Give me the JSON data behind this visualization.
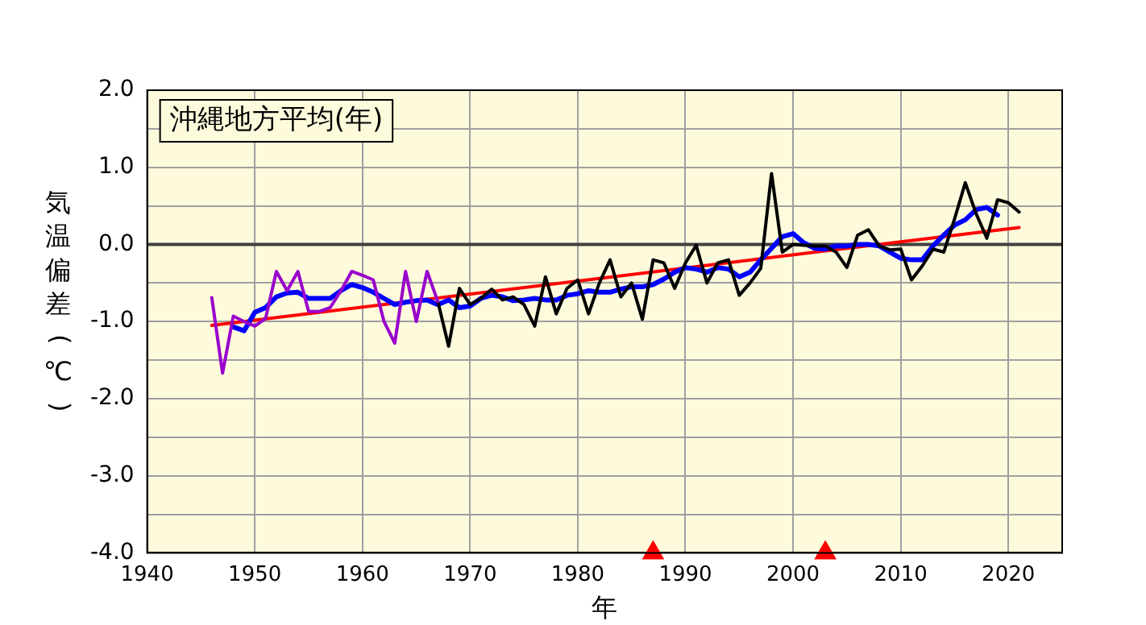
{
  "chart_data": {
    "type": "line",
    "title": "沖縄地方平均(年)",
    "xlabel": "年",
    "ylabel": "気温偏差(℃)",
    "xlim": [
      1940,
      2025
    ],
    "xticks": [
      1940,
      1950,
      1960,
      1970,
      1980,
      1990,
      2000,
      2010,
      2020
    ],
    "ylim": [
      -4,
      2
    ],
    "yticks": [
      {
        "value": -4,
        "label": "-4.0"
      },
      {
        "value": -3.5,
        "label": null
      },
      {
        "value": -3,
        "label": "-3.0"
      },
      {
        "value": -2.5,
        "label": null
      },
      {
        "value": -2,
        "label": "-2.0"
      },
      {
        "value": -1.5,
        "label": null
      },
      {
        "value": -1,
        "label": "-1.0"
      },
      {
        "value": -0.5,
        "label": null
      },
      {
        "value": 0,
        "label": "0.0"
      },
      {
        "value": 0.5,
        "label": null
      },
      {
        "value": 1,
        "label": "1.0"
      },
      {
        "value": 1.5,
        "label": null
      },
      {
        "value": 2,
        "label": "2.0"
      }
    ],
    "grid": true,
    "legend": false,
    "marker": "none",
    "line_style": "solid",
    "ref_lines": [
      {
        "axis": "y",
        "value": 0,
        "color": "#404040"
      }
    ],
    "series": [
      {
        "type": "line",
        "color": "#9900cc",
        "x": [
          1946,
          1947,
          1948,
          1949,
          1950,
          1951,
          1952,
          1953,
          1954,
          1955,
          1956,
          1957,
          1958,
          1959,
          1960,
          1961,
          1962,
          1963,
          1964,
          1965,
          1966,
          1967
        ],
        "values": [
          -0.69,
          -1.67,
          -0.93,
          -1.0,
          -1.06,
          -0.96,
          -0.35,
          -0.6,
          -0.35,
          -0.87,
          -0.87,
          -0.82,
          -0.6,
          -0.35,
          -0.4,
          -0.46,
          -1.0,
          -1.28,
          -0.35,
          -1.0,
          -0.35,
          -0.74
        ]
      },
      {
        "type": "line",
        "color": "#000000",
        "x": [
          1967,
          1968,
          1969,
          1970,
          1971,
          1972,
          1973,
          1974,
          1975,
          1976,
          1977,
          1978,
          1979,
          1980,
          1981,
          1982,
          1983,
          1984,
          1985,
          1986,
          1987,
          1988,
          1989,
          1990,
          1991,
          1992,
          1993,
          1994,
          1995,
          1996,
          1997,
          1998,
          1999,
          2000,
          2001,
          2002,
          2003,
          2004,
          2005,
          2006,
          2007,
          2008,
          2009,
          2010,
          2011,
          2012,
          2013,
          2014,
          2015,
          2016,
          2017,
          2018,
          2019,
          2020,
          2021
        ],
        "values": [
          -0.74,
          -1.32,
          -0.57,
          -0.78,
          -0.7,
          -0.58,
          -0.72,
          -0.68,
          -0.78,
          -1.06,
          -0.42,
          -0.9,
          -0.57,
          -0.46,
          -0.9,
          -0.5,
          -0.2,
          -0.68,
          -0.5,
          -0.97,
          -0.2,
          -0.24,
          -0.57,
          -0.24,
          -0.01,
          -0.5,
          -0.24,
          -0.2,
          -0.66,
          -0.5,
          -0.31,
          0.92,
          -0.1,
          0.0,
          -0.01,
          -0.02,
          -0.02,
          -0.1,
          -0.3,
          0.12,
          0.19,
          -0.02,
          -0.07,
          -0.06,
          -0.46,
          -0.28,
          -0.06,
          -0.1,
          0.33,
          0.8,
          0.4,
          0.08,
          0.58,
          0.54,
          0.42
        ]
      },
      {
        "type": "line",
        "color": "#0000ff",
        "x": [
          1948,
          1949,
          1950,
          1951,
          1952,
          1953,
          1954,
          1955,
          1956,
          1957,
          1958,
          1959,
          1960,
          1961,
          1962,
          1963,
          1964,
          1965,
          1966,
          1967,
          1968,
          1969,
          1970,
          1971,
          1972,
          1973,
          1974,
          1975,
          1976,
          1977,
          1978,
          1979,
          1980,
          1981,
          1982,
          1983,
          1984,
          1985,
          1986,
          1987,
          1988,
          1989,
          1990,
          1991,
          1992,
          1993,
          1994,
          1995,
          1996,
          1997,
          1998,
          1999,
          2000,
          2001,
          2002,
          2003,
          2004,
          2005,
          2006,
          2007,
          2008,
          2009,
          2010,
          2011,
          2012,
          2013,
          2014,
          2015,
          2016,
          2017,
          2018,
          2019
        ],
        "values": [
          -1.07,
          -1.12,
          -0.88,
          -0.82,
          -0.68,
          -0.63,
          -0.62,
          -0.7,
          -0.7,
          -0.7,
          -0.6,
          -0.52,
          -0.56,
          -0.62,
          -0.7,
          -0.78,
          -0.75,
          -0.73,
          -0.72,
          -0.78,
          -0.72,
          -0.82,
          -0.8,
          -0.7,
          -0.66,
          -0.68,
          -0.73,
          -0.72,
          -0.7,
          -0.72,
          -0.72,
          -0.66,
          -0.64,
          -0.6,
          -0.62,
          -0.62,
          -0.58,
          -0.55,
          -0.55,
          -0.52,
          -0.45,
          -0.36,
          -0.3,
          -0.32,
          -0.36,
          -0.3,
          -0.32,
          -0.42,
          -0.36,
          -0.2,
          -0.05,
          0.1,
          0.14,
          0.02,
          -0.05,
          -0.06,
          -0.02,
          -0.02,
          0.0,
          0.0,
          -0.02,
          -0.1,
          -0.18,
          -0.2,
          -0.2,
          -0.02,
          0.12,
          0.25,
          0.32,
          0.45,
          0.48,
          0.38
        ]
      },
      {
        "type": "line",
        "color": "#ff0000",
        "x": [
          1946,
          2021
        ],
        "values": [
          -1.05,
          0.22
        ]
      },
      {
        "type": "scatter",
        "color": "#ff0000",
        "marker": "triangle",
        "x": [
          1987,
          2003
        ],
        "values": [
          -4,
          -4
        ]
      }
    ]
  }
}
